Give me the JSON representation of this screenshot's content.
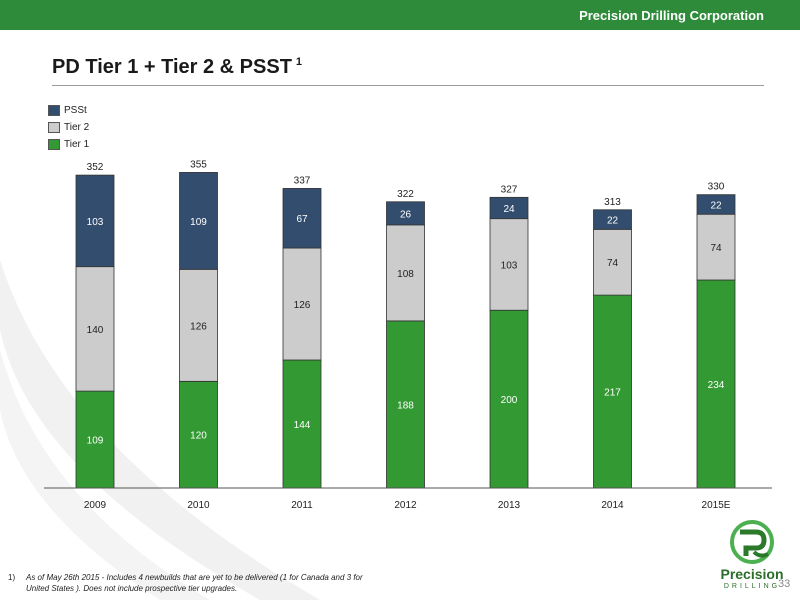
{
  "header": {
    "company": "Precision Drilling Corporation"
  },
  "slide": {
    "title": "PD Tier 1 + Tier 2 & PSST",
    "title_sup": "1",
    "page_number": "33"
  },
  "logo": {
    "name": "Precision",
    "sub": "DRILLING"
  },
  "footnote": {
    "number": "1)",
    "text": "As of May  26th 2015 - Includes 4 newbuilds that are yet to be delivered (1 for Canada and 3 for United States ). Does not include prospective tier upgrades."
  },
  "colors": {
    "tier1": "#339933",
    "tier2": "#cccccc",
    "psst": "#334d6e",
    "header": "#2e8b3a"
  },
  "chart_data": {
    "type": "bar",
    "stacked": true,
    "categories": [
      "2009",
      "2010",
      "2011",
      "2012",
      "2013",
      "2014",
      "2015E"
    ],
    "series": [
      {
        "name": "Tier 1",
        "values": [
          109,
          120,
          144,
          188,
          200,
          217,
          234
        ]
      },
      {
        "name": "Tier 2",
        "values": [
          140,
          126,
          126,
          108,
          103,
          74,
          74
        ]
      },
      {
        "name": "PSSt",
        "values": [
          103,
          109,
          67,
          26,
          24,
          22,
          22
        ]
      }
    ],
    "totals": [
      352,
      355,
      337,
      322,
      327,
      313,
      330
    ],
    "legend_order": [
      "PSSt",
      "Tier 2",
      "Tier 1"
    ],
    "legend_position": "top-left",
    "ylim": [
      0,
      360
    ],
    "grid": false
  }
}
